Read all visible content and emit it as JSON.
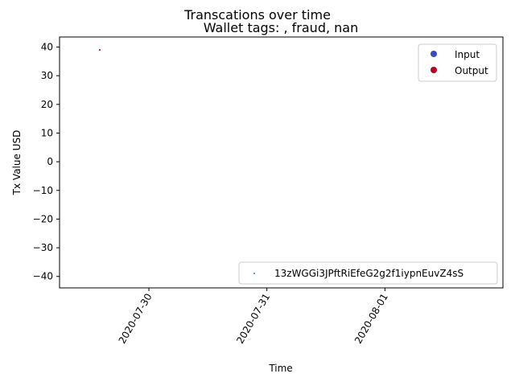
{
  "chart_data": {
    "type": "scatter",
    "title": "Transcations over time",
    "subtitle": "Wallet tags: , fraud, nan",
    "xlabel": "Time",
    "ylabel": "Tx Value USD",
    "x_ticks": [
      "2020-07-30",
      "2020-07-31",
      "2020-08-01"
    ],
    "y_ticks": [
      "40",
      "30",
      "20",
      "10",
      "0",
      "−10",
      "−20",
      "−30",
      "−40"
    ],
    "y_tick_values": [
      40,
      30,
      20,
      10,
      0,
      -10,
      -20,
      -30,
      -40
    ],
    "ylim": [
      -44,
      43.5
    ],
    "xlim": [
      "2020-07-29T05:50",
      "2020-08-02T00:00"
    ],
    "series": [
      {
        "name": "Output",
        "color": "#b40426",
        "points": [
          {
            "x": "2020-07-29T14:00",
            "y": 39
          }
        ]
      }
    ],
    "legend_upper": {
      "placement": "top-right",
      "entries": [
        {
          "label": "Input",
          "color": "#3b4cc0"
        },
        {
          "label": "Output",
          "color": "#b40426"
        }
      ]
    },
    "legend_lower": {
      "placement": "bottom-right",
      "entries": [
        {
          "label": "13zWGGi3JPftRiEfeG2g2f1iypnEuvZ4sS",
          "color": "#1f77b4"
        }
      ]
    },
    "grid": false
  }
}
